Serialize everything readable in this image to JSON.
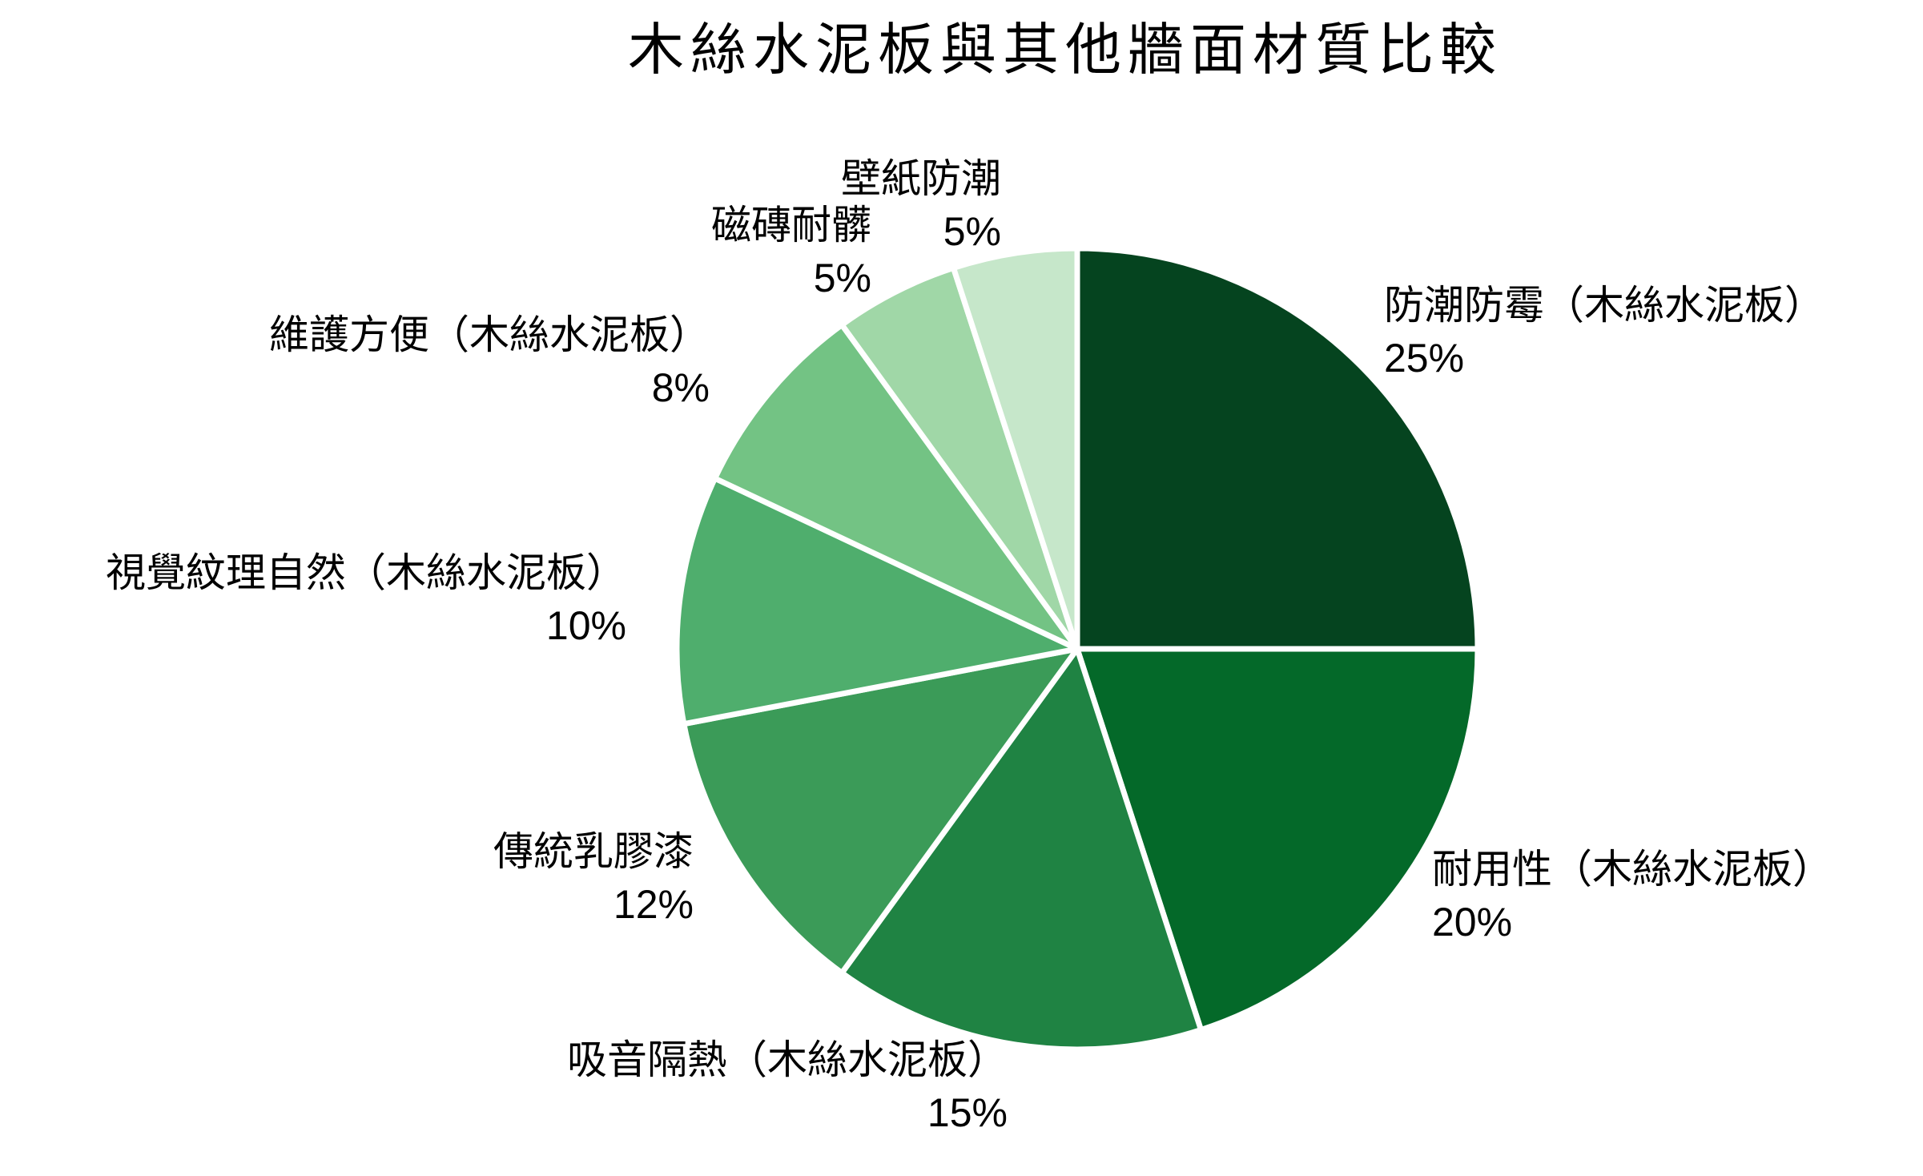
{
  "title": "木絲水泥板與其他牆面材質比較",
  "chart_data": {
    "type": "pie",
    "title": "木絲水泥板與其他牆面材質比較",
    "direction": "clockwise",
    "start_angle_deg": 0,
    "legend": "none",
    "total": 100,
    "slices": [
      {
        "label": "防潮防霉（木絲水泥板）",
        "value": 25,
        "pct_label": "25%",
        "color": "#05441f"
      },
      {
        "label": "耐用性（木絲水泥板）",
        "value": 20,
        "pct_label": "20%",
        "color": "#046929"
      },
      {
        "label": "吸音隔熱（木絲水泥板）",
        "value": 15,
        "pct_label": "15%",
        "color": "#1f8343"
      },
      {
        "label": "傳統乳膠漆",
        "value": 12,
        "pct_label": "12%",
        "color": "#3b9b58"
      },
      {
        "label": "視覺紋理自然（木絲水泥板）",
        "value": 10,
        "pct_label": "10%",
        "color": "#4fae6d"
      },
      {
        "label": "維護方便（木絲水泥板）",
        "value": 8,
        "pct_label": "8%",
        "color": "#73c384"
      },
      {
        "label": "磁磚耐髒",
        "value": 5,
        "pct_label": "5%",
        "color": "#a0d7a7"
      },
      {
        "label": "壁紙防潮",
        "value": 5,
        "pct_label": "5%",
        "color": "#c6e7ca"
      }
    ],
    "colors_note": "monochromatic green scale, darkest = largest slice, separated by white borders",
    "separator_color": "#ffffff"
  }
}
